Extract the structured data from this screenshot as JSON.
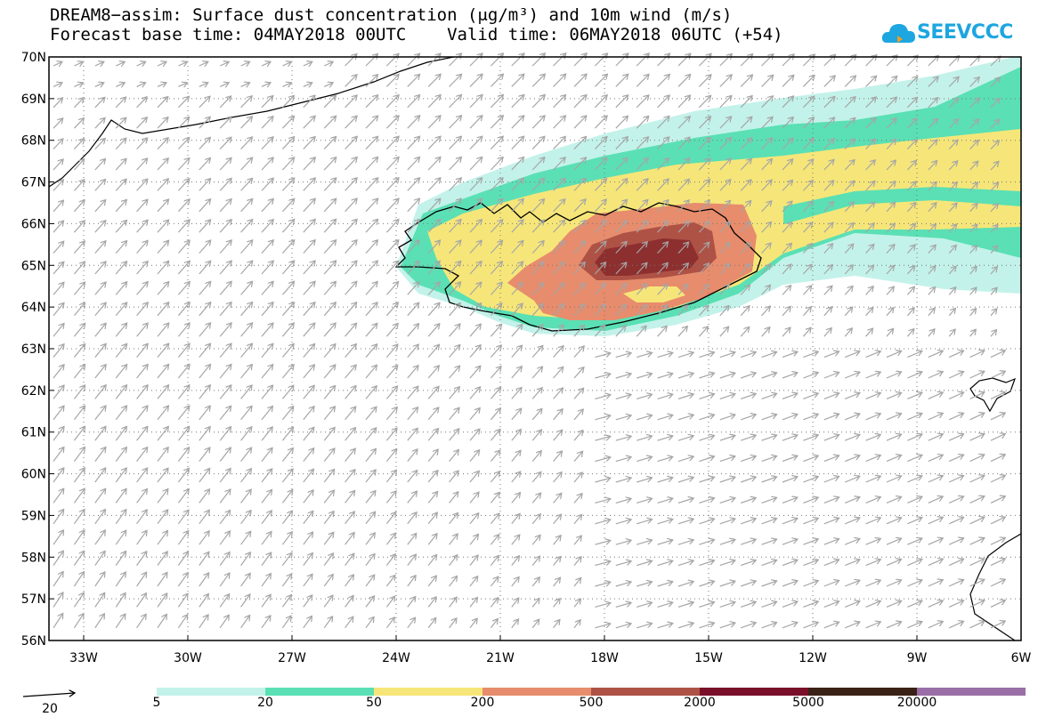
{
  "title_line1": "DREAM8−assim: Surface dust concentration (μg/m³) and 10m wind (m/s)",
  "title_line2": "Forecast base time: 04MAY2018 00UTC    Valid time: 06MAY2018 06UTC (+54)",
  "logo_text": "SEEVCCC",
  "logo_icon": "cloud-icon",
  "map": {
    "lon_ticks": [
      "33W",
      "30W",
      "27W",
      "24W",
      "21W",
      "18W",
      "15W",
      "12W",
      "9W",
      "6W"
    ],
    "lat_ticks": [
      "70N",
      "69N",
      "68N",
      "67N",
      "66N",
      "65N",
      "64N",
      "63N",
      "62N",
      "61N",
      "60N",
      "59N",
      "58N",
      "57N",
      "56N"
    ],
    "extent": {
      "lon_min": -34,
      "lon_max": -6,
      "lat_min": 56,
      "lat_max": 70
    },
    "gridlines": "dotted",
    "wind_arrow_color": "#a6a6a6"
  },
  "wind_reference": {
    "value": "20"
  },
  "legend": {
    "thresholds": [
      "5",
      "20",
      "50",
      "200",
      "500",
      "2000",
      "5000",
      "20000"
    ],
    "colors": [
      "#c3f2ea",
      "#5ae0b4",
      "#f6e679",
      "#e78c6c",
      "#ae5246",
      "#7a0f2a",
      "#3b2216",
      "#9a6ea6"
    ]
  }
}
